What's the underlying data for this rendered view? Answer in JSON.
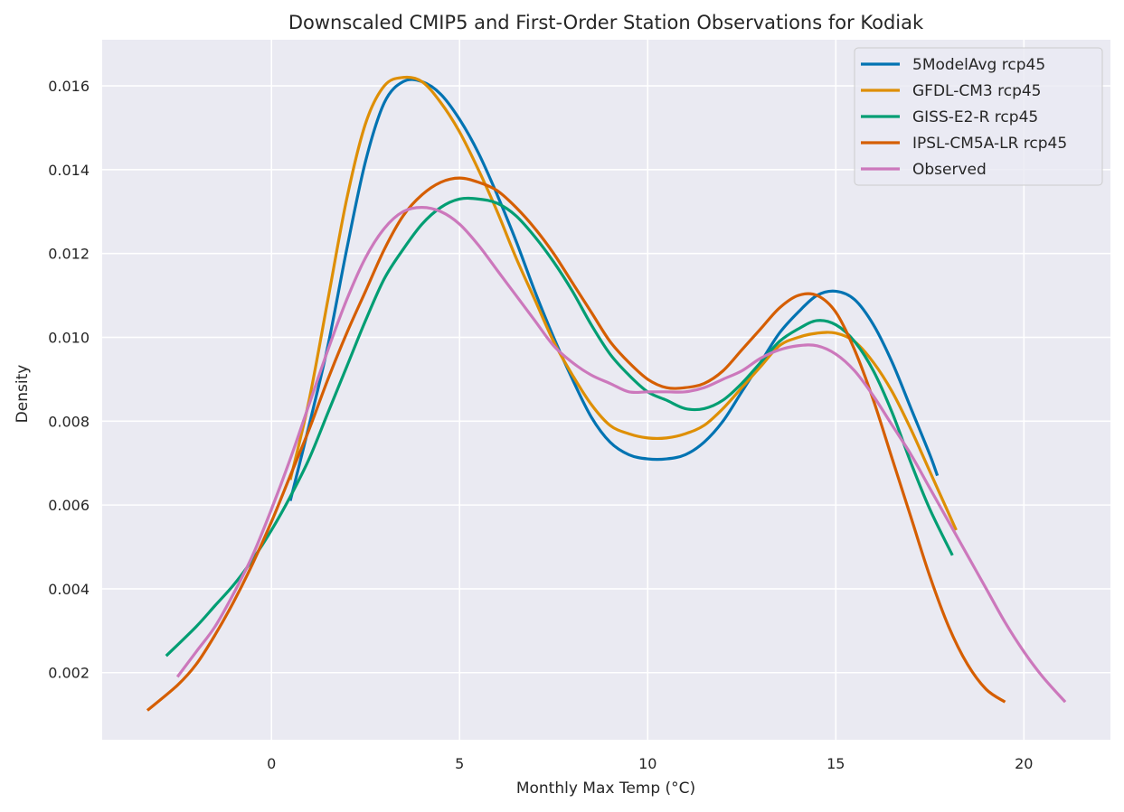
{
  "chart_data": {
    "type": "line",
    "title": "Downscaled CMIP5 and First-Order Station Observations for Kodiak",
    "xlabel": "Monthly Max Temp (°C)",
    "ylabel": "Density",
    "xlim": [
      -4.5,
      22.3
    ],
    "ylim": [
      0.0004,
      0.0171
    ],
    "xticks": [
      0,
      5,
      10,
      15,
      20
    ],
    "xtick_labels": [
      "0",
      "5",
      "10",
      "15",
      "20"
    ],
    "yticks": [
      0.002,
      0.004,
      0.006,
      0.008,
      0.01,
      0.012,
      0.014,
      0.016
    ],
    "ytick_labels": [
      "0.002",
      "0.004",
      "0.006",
      "0.008",
      "0.010",
      "0.012",
      "0.014",
      "0.016"
    ],
    "grid": true,
    "legend_position": "top-right",
    "background_color": "#eaeaf2",
    "series": [
      {
        "name": "5ModelAvg rcp45",
        "color": "#0173b2",
        "x": [
          0.5,
          1.0,
          1.5,
          2.0,
          2.5,
          3.0,
          3.5,
          4.0,
          4.5,
          5.0,
          5.5,
          6.0,
          6.5,
          7.0,
          7.5,
          8.0,
          8.5,
          9.0,
          9.5,
          10.0,
          10.5,
          11.0,
          11.5,
          12.0,
          12.5,
          13.0,
          13.5,
          14.0,
          14.5,
          15.0,
          15.5,
          16.0,
          16.5,
          17.0,
          17.5,
          17.7
        ],
        "y": [
          0.0061,
          0.0079,
          0.0098,
          0.0121,
          0.0142,
          0.0156,
          0.0161,
          0.0161,
          0.0158,
          0.0152,
          0.0144,
          0.0134,
          0.0123,
          0.0111,
          0.01,
          0.009,
          0.0081,
          0.0075,
          0.0072,
          0.0071,
          0.0071,
          0.0072,
          0.0075,
          0.008,
          0.0087,
          0.0094,
          0.0101,
          0.0106,
          0.011,
          0.0111,
          0.0109,
          0.0103,
          0.0094,
          0.0083,
          0.0072,
          0.0067
        ]
      },
      {
        "name": "GFDL-CM3 rcp45",
        "color": "#de8f05",
        "x": [
          0.5,
          1.0,
          1.5,
          2.0,
          2.5,
          3.0,
          3.5,
          4.0,
          4.5,
          5.0,
          5.5,
          6.0,
          6.5,
          7.0,
          7.5,
          8.0,
          8.5,
          9.0,
          9.5,
          10.0,
          10.5,
          11.0,
          11.5,
          12.0,
          12.5,
          13.0,
          13.5,
          14.0,
          14.5,
          15.0,
          15.5,
          16.0,
          16.5,
          17.0,
          17.5,
          18.2
        ],
        "y": [
          0.0066,
          0.0085,
          0.0109,
          0.0133,
          0.0151,
          0.016,
          0.0162,
          0.0161,
          0.0156,
          0.0149,
          0.014,
          0.013,
          0.0119,
          0.0109,
          0.0099,
          0.0091,
          0.0084,
          0.0079,
          0.0077,
          0.0076,
          0.0076,
          0.0077,
          0.0079,
          0.0083,
          0.0088,
          0.0093,
          0.0098,
          0.01,
          0.0101,
          0.0101,
          0.0099,
          0.0094,
          0.0087,
          0.0078,
          0.0068,
          0.0054
        ]
      },
      {
        "name": "GISS-E2-R rcp45",
        "color": "#029e73",
        "x": [
          -2.8,
          -2.0,
          -1.5,
          -1.0,
          -0.5,
          0.0,
          0.5,
          1.0,
          1.5,
          2.0,
          2.5,
          3.0,
          3.5,
          4.0,
          4.5,
          5.0,
          5.5,
          6.0,
          6.5,
          7.0,
          7.5,
          8.0,
          8.5,
          9.0,
          9.5,
          10.0,
          10.5,
          11.0,
          11.5,
          12.0,
          12.5,
          13.0,
          13.5,
          14.0,
          14.5,
          15.0,
          15.5,
          16.0,
          16.5,
          17.0,
          17.5,
          18.1
        ],
        "y": [
          0.0024,
          0.0031,
          0.0036,
          0.0041,
          0.0047,
          0.0054,
          0.0062,
          0.0071,
          0.0082,
          0.0093,
          0.0104,
          0.0114,
          0.0121,
          0.0127,
          0.0131,
          0.0133,
          0.0133,
          0.0132,
          0.0129,
          0.0124,
          0.0118,
          0.0111,
          0.0103,
          0.0096,
          0.0091,
          0.0087,
          0.0085,
          0.0083,
          0.0083,
          0.0085,
          0.0089,
          0.0094,
          0.0099,
          0.0102,
          0.0104,
          0.0103,
          0.0099,
          0.0092,
          0.0082,
          0.007,
          0.0059,
          0.0048
        ]
      },
      {
        "name": "IPSL-CM5A-LR rcp45",
        "color": "#d55e00",
        "x": [
          -3.3,
          -2.5,
          -2.0,
          -1.5,
          -1.0,
          -0.5,
          0.0,
          0.5,
          1.0,
          1.5,
          2.0,
          2.5,
          3.0,
          3.5,
          4.0,
          4.5,
          5.0,
          5.5,
          6.0,
          6.5,
          7.0,
          7.5,
          8.0,
          8.5,
          9.0,
          9.5,
          10.0,
          10.5,
          11.0,
          11.5,
          12.0,
          12.5,
          13.0,
          13.5,
          14.0,
          14.5,
          15.0,
          15.5,
          16.0,
          16.5,
          17.0,
          17.5,
          18.0,
          18.5,
          19.0,
          19.5
        ],
        "y": [
          0.0011,
          0.0017,
          0.0022,
          0.0029,
          0.0037,
          0.0046,
          0.0056,
          0.0067,
          0.0078,
          0.009,
          0.0101,
          0.0111,
          0.0121,
          0.0129,
          0.0134,
          0.0137,
          0.0138,
          0.0137,
          0.0135,
          0.0131,
          0.0126,
          0.012,
          0.0113,
          0.0106,
          0.0099,
          0.0094,
          0.009,
          0.0088,
          0.0088,
          0.0089,
          0.0092,
          0.0097,
          0.0102,
          0.0107,
          0.011,
          0.011,
          0.0106,
          0.0097,
          0.0085,
          0.0071,
          0.0057,
          0.0043,
          0.0031,
          0.0022,
          0.0016,
          0.0013
        ]
      },
      {
        "name": "Observed",
        "color": "#cc78bc",
        "x": [
          -2.5,
          -2.0,
          -1.5,
          -1.0,
          -0.5,
          0.0,
          0.5,
          1.0,
          1.5,
          2.0,
          2.5,
          3.0,
          3.5,
          4.0,
          4.5,
          5.0,
          5.5,
          6.0,
          6.5,
          7.0,
          7.5,
          8.0,
          8.5,
          9.0,
          9.5,
          10.0,
          10.5,
          11.0,
          11.5,
          12.0,
          12.5,
          13.0,
          13.5,
          14.0,
          14.5,
          15.0,
          15.5,
          16.0,
          16.5,
          17.0,
          17.5,
          18.0,
          18.5,
          19.0,
          19.5,
          20.0,
          20.5,
          21.1
        ],
        "y": [
          0.0019,
          0.0025,
          0.0031,
          0.0039,
          0.0048,
          0.0059,
          0.0071,
          0.0084,
          0.0097,
          0.0109,
          0.0119,
          0.0126,
          0.013,
          0.0131,
          0.013,
          0.0127,
          0.0122,
          0.0116,
          0.011,
          0.0104,
          0.0098,
          0.0094,
          0.0091,
          0.0089,
          0.0087,
          0.0087,
          0.0087,
          0.0087,
          0.0088,
          0.009,
          0.0092,
          0.0095,
          0.0097,
          0.0098,
          0.0098,
          0.0096,
          0.0092,
          0.0086,
          0.0079,
          0.0072,
          0.0064,
          0.0056,
          0.0048,
          0.004,
          0.0032,
          0.0025,
          0.0019,
          0.0013
        ]
      }
    ]
  }
}
